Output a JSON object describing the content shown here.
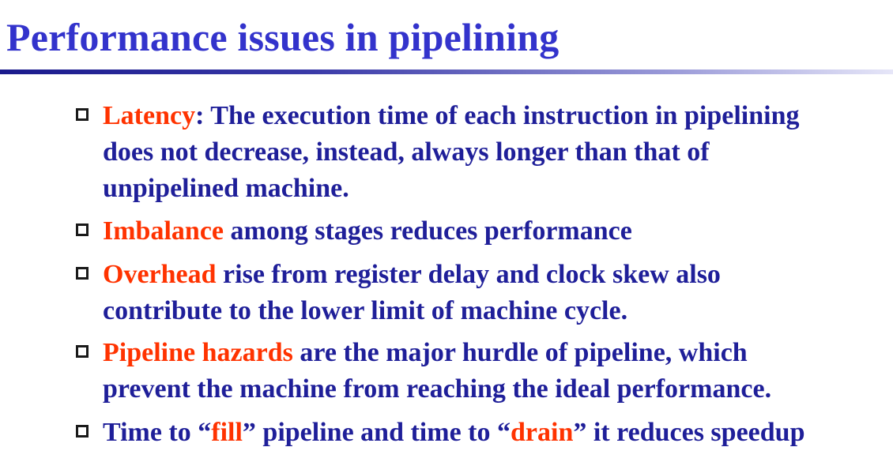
{
  "slide": {
    "title": "Performance issues in pipelining",
    "bullets": [
      {
        "lines": [
          [
            {
              "text": "Latency",
              "highlight": true
            },
            {
              "text": ": The execution time of each instruction in pipelining"
            }
          ],
          [
            {
              "text": "does not decrease, instead, always longer than that of"
            }
          ],
          [
            {
              "text": "unpipelined machine."
            }
          ]
        ]
      },
      {
        "lines": [
          [
            {
              "text": "Imbalance",
              "highlight": true
            },
            {
              "text": " among stages reduces performance"
            }
          ]
        ]
      },
      {
        "lines": [
          [
            {
              "text": "Overhead",
              "highlight": true
            },
            {
              "text": " rise from register delay and clock skew also"
            }
          ],
          [
            {
              "text": "contribute to the lower limit of machine cycle."
            }
          ]
        ]
      },
      {
        "lines": [
          [
            {
              "text": "Pipeline hazards",
              "highlight": true
            },
            {
              "text": " are the major hurdle of pipeline, which"
            }
          ],
          [
            {
              "text": "prevent the machine from reaching the ideal  performance."
            }
          ]
        ]
      },
      {
        "lines": [
          [
            {
              "text": "Time to “"
            },
            {
              "text": "fill",
              "highlight": true
            },
            {
              "text": "” pipeline and time to “"
            },
            {
              "text": "drain",
              "highlight": true
            },
            {
              "text": "” it reduces speedup"
            }
          ]
        ]
      }
    ]
  },
  "colors": {
    "title": "#3333cc",
    "body_text": "#1f1f99",
    "highlight": "#ff3300",
    "bullet_box": "#1a1a1a"
  },
  "icons": {
    "bullet": "hollow-square-bullet-icon"
  }
}
